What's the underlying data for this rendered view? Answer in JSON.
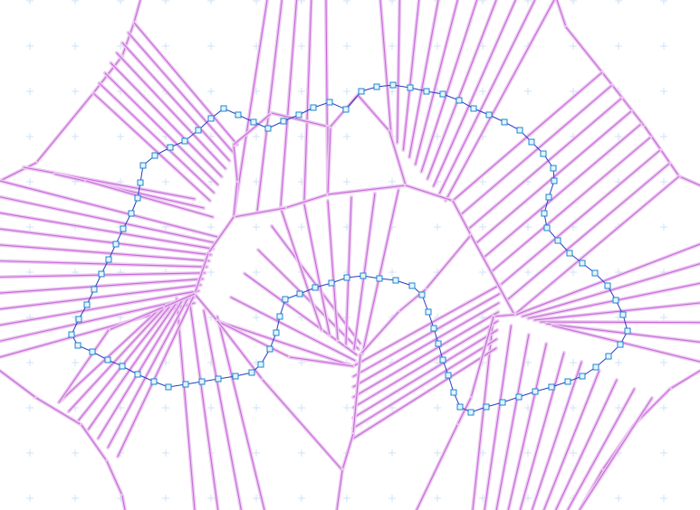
{
  "canvas": {
    "background": "#ffffff",
    "grid_color": "#cfe3f5",
    "crease_color": "#c46ad6",
    "crease_halo_color": "#ecc8f2",
    "path_color": "#2a3bbf",
    "node_stroke_color": "#1a86d0",
    "node_fill_color": "#e6f4fc",
    "grid_marker_icon": "plus-icon",
    "node_icon": "square-node-icon"
  }
}
